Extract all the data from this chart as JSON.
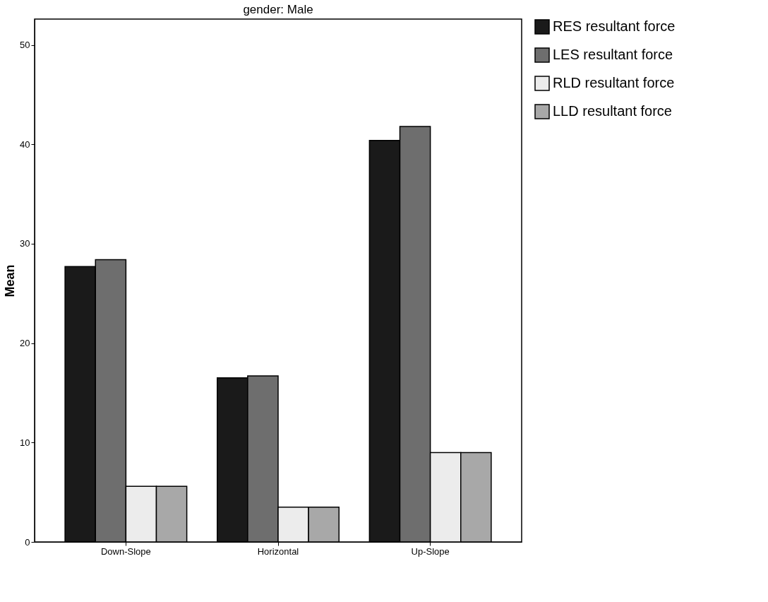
{
  "chart_data": {
    "type": "bar",
    "title": "gender: Male",
    "ylabel": "Mean",
    "categories": [
      "Down-Slope",
      "Horizontal",
      "Up-Slope"
    ],
    "series": [
      {
        "name": "RES resultant force",
        "color": "#1a1a1a",
        "values": [
          27.7,
          16.5,
          40.4
        ]
      },
      {
        "name": "LES resultant force",
        "color": "#6e6e6e",
        "values": [
          28.4,
          16.7,
          41.8
        ]
      },
      {
        "name": "RLD resultant force",
        "color": "#ececec",
        "values": [
          5.6,
          3.5,
          9.0
        ]
      },
      {
        "name": "LLD resultant force",
        "color": "#a8a8a8",
        "values": [
          5.6,
          3.5,
          9.0
        ]
      }
    ],
    "ylim": [
      0,
      52.6
    ],
    "yticks": [
      0,
      10,
      20,
      30,
      40,
      50
    ],
    "grid": false,
    "legend": "top right"
  }
}
